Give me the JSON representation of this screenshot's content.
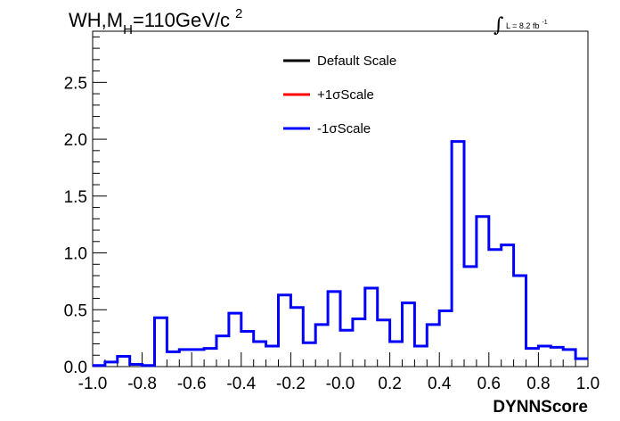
{
  "chart_data": {
    "type": "histogram",
    "title": {
      "main": "WH,M",
      "subscript": "H",
      "rest": "=110GeV/c",
      "superscript": "2"
    },
    "luminosity": {
      "integral": "∫",
      "text": "L = 8.2 fb",
      "superscript": "-1"
    },
    "xlabel": "DYNNScore",
    "ylabel": "",
    "xlim": [
      -1.0,
      1.0
    ],
    "ylim": [
      0,
      2.95
    ],
    "x_ticks": [
      "-1.0",
      "-0.8",
      "-0.6",
      "-0.4",
      "-0.2",
      "-0.0",
      "0.2",
      "0.4",
      "0.6",
      "0.8",
      "1.0"
    ],
    "y_ticks": [
      "0.0",
      "0.5",
      "1.0",
      "1.5",
      "2.0",
      "2.5"
    ],
    "legend": [
      {
        "label": "Default Scale",
        "color": "#000000"
      },
      {
        "label": "+1σScale",
        "color": "#ff0000"
      },
      {
        "label": "-1σScale",
        "color": "#0000ff"
      }
    ],
    "bin_edges_start": -1.0,
    "bin_width": 0.05,
    "series": [
      {
        "name": "-1σScale",
        "color": "#0000ff",
        "values": [
          0.01,
          0.04,
          0.09,
          0.02,
          0.01,
          0.43,
          0.13,
          0.15,
          0.15,
          0.16,
          0.27,
          0.47,
          0.31,
          0.22,
          0.18,
          0.63,
          0.52,
          0.21,
          0.37,
          0.66,
          0.32,
          0.42,
          0.69,
          0.41,
          0.22,
          0.56,
          0.18,
          0.37,
          0.49,
          1.98,
          0.88,
          1.32,
          1.03,
          1.07,
          0.8,
          0.16,
          0.18,
          0.17,
          0.15,
          0.07
        ]
      }
    ]
  }
}
